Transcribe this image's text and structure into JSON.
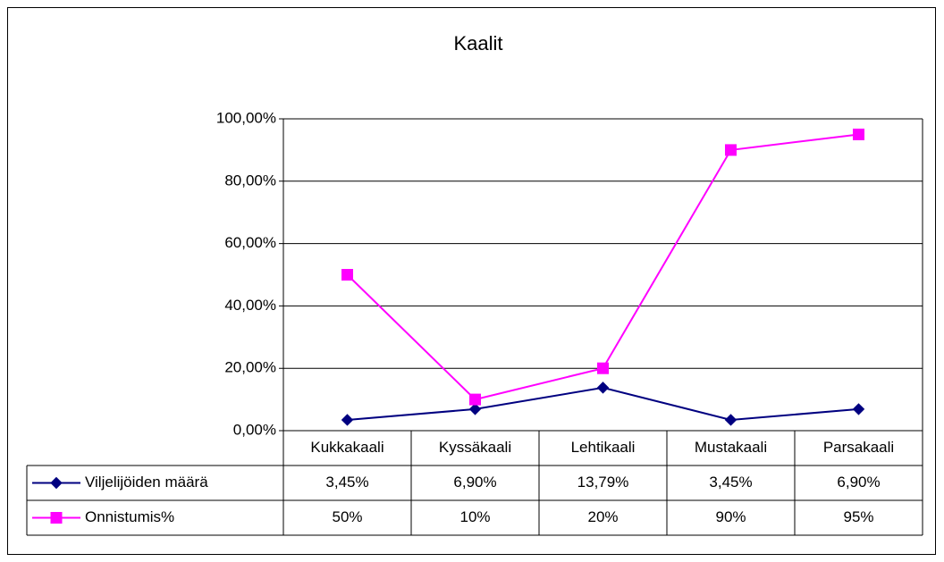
{
  "chart_data": {
    "type": "line",
    "title": "Kaalit",
    "categories": [
      "Kukkakaali",
      "Kyssäkaali",
      "Lehtikaali",
      "Mustakaali",
      "Parsakaali"
    ],
    "series": [
      {
        "name": "Viljelijöiden määrä",
        "color": "#000080",
        "marker": "diamond",
        "values": [
          3.45,
          6.9,
          13.79,
          3.45,
          6.9
        ],
        "value_labels": [
          "3,45%",
          "6,90%",
          "13,79%",
          "3,45%",
          "6,90%"
        ]
      },
      {
        "name": "Onnistumis%",
        "color": "#ff00ff",
        "marker": "square",
        "values": [
          50,
          10,
          20,
          90,
          95
        ],
        "value_labels": [
          "50%",
          "10%",
          "20%",
          "90%",
          "95%"
        ]
      }
    ],
    "ylim": [
      0,
      100
    ],
    "yticks": [
      {
        "value": 0,
        "label": "0,00%"
      },
      {
        "value": 20,
        "label": "20,00%"
      },
      {
        "value": 40,
        "label": "40,00%"
      },
      {
        "value": 60,
        "label": "60,00%"
      },
      {
        "value": 80,
        "label": "80,00%"
      },
      {
        "value": 100,
        "label": "100,00%"
      }
    ],
    "grid": true,
    "data_table": true
  }
}
